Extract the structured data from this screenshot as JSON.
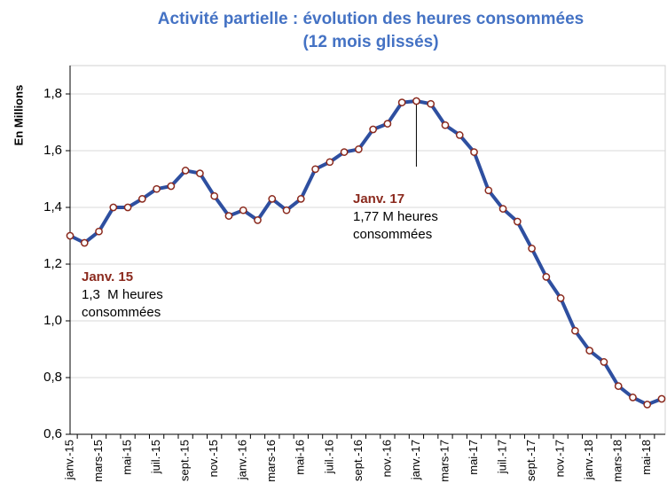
{
  "chart_data": {
    "type": "line",
    "title": [
      "Activité partielle : évolution des heures consommées",
      "(12 mois glissés)"
    ],
    "y_label": "En Millions",
    "categories": [
      "janv.-15",
      null,
      "mars-15",
      null,
      "mai-15",
      null,
      "juil.-15",
      null,
      "sept.-15",
      null,
      "nov.-15",
      null,
      "janv.-16",
      null,
      "mars-16",
      null,
      "mai-16",
      null,
      "juil.-16",
      null,
      "sept.-16",
      null,
      "nov.-16",
      null,
      "janv.-17",
      null,
      "mars-17",
      null,
      "mai-17",
      null,
      "juil.-17",
      null,
      "sept.-17",
      null,
      "nov.-17",
      null,
      "janv.-18",
      null,
      "mars-18",
      null,
      "mai-18",
      null
    ],
    "series": [
      {
        "name": "Heures consommées",
        "color": "#2e4fa0",
        "marker_color": "#8b2a1e",
        "values": [
          1.3,
          1.275,
          1.315,
          1.4,
          1.4,
          1.43,
          1.465,
          1.475,
          1.53,
          1.52,
          1.44,
          1.37,
          1.39,
          1.355,
          1.43,
          1.39,
          1.43,
          1.535,
          1.56,
          1.595,
          1.605,
          1.675,
          1.695,
          1.77,
          1.775,
          1.765,
          1.69,
          1.655,
          1.595,
          1.46,
          1.395,
          1.35,
          1.255,
          1.155,
          1.08,
          0.965,
          0.895,
          0.855,
          0.77,
          0.73,
          0.705,
          0.725
        ]
      }
    ],
    "ylim": [
      0.6,
      1.9
    ],
    "yticks": [
      {
        "value": 0.6,
        "label": "0,6"
      },
      {
        "value": 0.8,
        "label": "0,8"
      },
      {
        "value": 1.0,
        "label": "1,0"
      },
      {
        "value": 1.2,
        "label": "1,2"
      },
      {
        "value": 1.4,
        "label": "1,4"
      },
      {
        "value": 1.6,
        "label": "1,6"
      },
      {
        "value": 1.8,
        "label": "1,8"
      }
    ],
    "grid": true,
    "annotations": [
      {
        "title": "Janv. 15",
        "text": [
          "1,3  M heures",
          "consommées"
        ]
      },
      {
        "title": "Janv. 17",
        "text": [
          "1,77 M heures",
          "consommées"
        ]
      }
    ]
  }
}
